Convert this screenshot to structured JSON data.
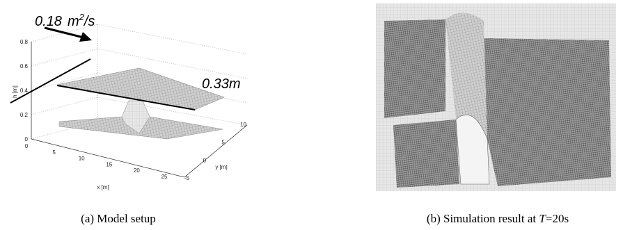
{
  "panel_a": {
    "flow_label": {
      "value": "0.18",
      "unit": "m",
      "exponent": "2",
      "unit_rest": "/s"
    },
    "depth_label": "0.33m",
    "z_axis": {
      "label": "h [m]",
      "ticks": [
        "0",
        "0.2",
        "0.4",
        "0.6",
        "0.8"
      ]
    },
    "x_axis": {
      "label": "x [m]",
      "ticks": [
        "0",
        "5",
        "10",
        "15",
        "20",
        "25"
      ]
    },
    "y_axis": {
      "label": "y [m]",
      "ticks": [
        "-5",
        "0",
        "5",
        "10"
      ]
    },
    "caption": "(a) Model setup"
  },
  "panel_b": {
    "caption": {
      "prefix": "(b) Simulation result at ",
      "symbol": "T",
      "suffix": "=20s"
    }
  }
}
